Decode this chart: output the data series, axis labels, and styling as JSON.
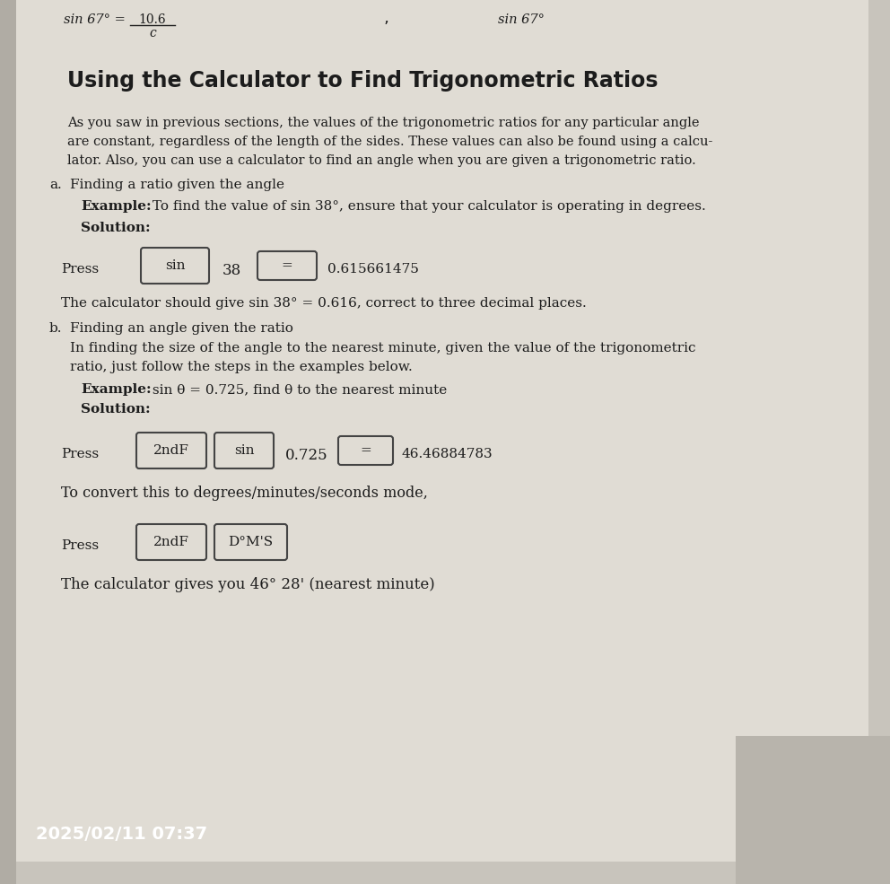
{
  "bg_color": "#c8c4bc",
  "page_color": "#e0dcd4",
  "title": "Using the Calculator to Find Trigonometric Ratios",
  "body_text_lines": [
    "As you saw in previous sections, the values of the trigonometric ratios for any particular angle",
    "are constant, regardless of the length of the sides. These values can also be found using a calcu-",
    "lator. Also, you can use a calculator to find an angle when you are given a trigonometric ratio."
  ],
  "section_a_label": "a.",
  "section_a_title": "Finding a ratio given the angle",
  "example_a_bold": "Example:",
  "example_a_text": " To find the value of sin 38°, ensure that your calculator is operating in degrees.",
  "solution_a": "Solution:",
  "press_a": "Press",
  "btn_sin": "sin",
  "num_38": "38",
  "btn_eq": "=",
  "result_a": "0.615661475",
  "calc_text_a": "The calculator should give sin 38° = 0.616, correct to three decimal places.",
  "section_b_label": "b.",
  "section_b_title": "Finding an angle given the ratio",
  "body_b_lines": [
    "In finding the size of the angle to the nearest minute, given the value of the trigonometric",
    "ratio, just follow the steps in the examples below."
  ],
  "example_b_bold": "Example:",
  "example_b_text": " sin θ = 0.725, find θ to the nearest minute",
  "solution_b": "Solution:",
  "press_b": "Press",
  "btn_2ndF": "2ndF",
  "btn_sin2": "sin",
  "num_0725": "0.725",
  "btn_eq2": "=",
  "result_b": "46.46884783",
  "convert_text": "To convert this to degrees/minutes/seconds mode,",
  "press_c": "Press",
  "btn_2ndF2": "2ndF",
  "btn_dms": "D°M'S",
  "final_text": "The calculator gives you 46° 28' (nearest minute)",
  "timestamp": "2025/02/11 07:37",
  "text_color": "#1c1c1c",
  "btn_border_color": "#444444",
  "timestamp_color": "#ffffff"
}
